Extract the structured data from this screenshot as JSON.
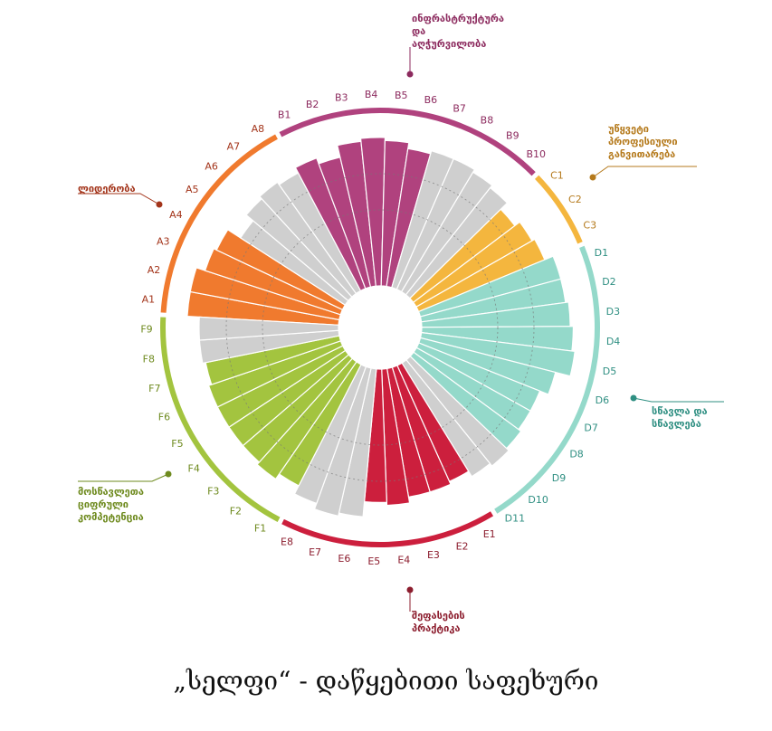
{
  "caption": "„სელფი“ - დაწყებითი საფეხური",
  "chart_data": {
    "type": "radial-bar",
    "ylim": [
      0,
      5
    ],
    "center_ratio": 0.2,
    "groups": [
      {
        "key": "A",
        "name": "ლიდერობა",
        "color": "#f07a2e",
        "items": [
          {
            "label": "A1",
            "value": 5.0,
            "filled": true
          },
          {
            "label": "A2",
            "value": 5.0,
            "filled": true
          },
          {
            "label": "A3",
            "value": 4.7,
            "filled": true
          },
          {
            "label": "A4",
            "value": 4.6,
            "filled": true
          },
          {
            "label": "A5",
            "value": 4.1,
            "filled": false
          },
          {
            "label": "A6",
            "value": 4.4,
            "filled": false
          },
          {
            "label": "A7",
            "value": 4.5,
            "filled": false
          },
          {
            "label": "A8",
            "value": 4.4,
            "filled": false
          }
        ]
      },
      {
        "key": "B",
        "name": "ინფრასტრუქტურა\nდა\nაღჭურვილობა",
        "color": "#b0427e",
        "items": [
          {
            "label": "B1",
            "value": 4.6,
            "filled": true
          },
          {
            "label": "B2",
            "value": 4.4,
            "filled": true
          },
          {
            "label": "B3",
            "value": 4.8,
            "filled": true
          },
          {
            "label": "B4",
            "value": 4.9,
            "filled": true
          },
          {
            "label": "B5",
            "value": 4.8,
            "filled": true
          },
          {
            "label": "B6",
            "value": 4.6,
            "filled": true
          },
          {
            "label": "B7",
            "value": 4.7,
            "filled": false
          },
          {
            "label": "B8",
            "value": 4.7,
            "filled": false
          },
          {
            "label": "B9",
            "value": 4.6,
            "filled": false
          },
          {
            "label": "B10",
            "value": 4.5,
            "filled": false
          }
        ]
      },
      {
        "key": "C",
        "name": "უწყვეტი\nპროფესიული\nგანვითარება",
        "color": "#f4b63e",
        "items": [
          {
            "label": "C1",
            "value": 4.2,
            "filled": true
          },
          {
            "label": "C2",
            "value": 4.4,
            "filled": true
          },
          {
            "label": "C3",
            "value": 4.5,
            "filled": true
          }
        ]
      },
      {
        "key": "D",
        "name": "სწავლა და\nსწავლება",
        "color": "#94d9ca",
        "items": [
          {
            "label": "D1",
            "value": 4.8,
            "filled": true
          },
          {
            "label": "D2",
            "value": 4.8,
            "filled": true
          },
          {
            "label": "D3",
            "value": 4.9,
            "filled": true
          },
          {
            "label": "D4",
            "value": 5.0,
            "filled": true
          },
          {
            "label": "D5",
            "value": 5.1,
            "filled": true
          },
          {
            "label": "D6",
            "value": 4.6,
            "filled": true
          },
          {
            "label": "D7",
            "value": 4.3,
            "filled": true
          },
          {
            "label": "D8",
            "value": 4.3,
            "filled": true
          },
          {
            "label": "D9",
            "value": 4.4,
            "filled": true
          },
          {
            "label": "D10",
            "value": 4.5,
            "filled": false
          },
          {
            "label": "D11",
            "value": 4.4,
            "filled": false
          }
        ]
      },
      {
        "key": "E",
        "name": "შეფასების\nპრაქტიკა",
        "color": "#cc1f3d",
        "items": [
          {
            "label": "E1",
            "value": 4.2,
            "filled": true
          },
          {
            "label": "E2",
            "value": 4.3,
            "filled": true
          },
          {
            "label": "E3",
            "value": 4.3,
            "filled": true
          },
          {
            "label": "E4",
            "value": 4.5,
            "filled": true
          },
          {
            "label": "E5",
            "value": 4.4,
            "filled": true
          },
          {
            "label": "E6",
            "value": 4.9,
            "filled": false
          },
          {
            "label": "E7",
            "value": 5.0,
            "filled": false
          },
          {
            "label": "E8",
            "value": 4.8,
            "filled": false
          }
        ]
      },
      {
        "key": "F",
        "name": "მოსწავლეთა\nციფრული\nკომპეტენცია",
        "color": "#a3c43f",
        "items": [
          {
            "label": "F1",
            "value": 4.5,
            "filled": true
          },
          {
            "label": "F2",
            "value": 4.7,
            "filled": true
          },
          {
            "label": "F3",
            "value": 4.6,
            "filled": true
          },
          {
            "label": "F4",
            "value": 4.6,
            "filled": true
          },
          {
            "label": "F5",
            "value": 4.6,
            "filled": true
          },
          {
            "label": "F6",
            "value": 4.6,
            "filled": true
          },
          {
            "label": "F7",
            "value": 4.5,
            "filled": true
          },
          {
            "label": "F8",
            "value": 4.6,
            "filled": false
          },
          {
            "label": "F9",
            "value": 4.6,
            "filled": false
          }
        ]
      }
    ],
    "unfilled_color": "#cfcfcf",
    "label_colors": {
      "A": "#a3341a",
      "B": "#8c2a5e",
      "C": "#b57a1c",
      "D": "#2f8f82",
      "E": "#8c1d2e",
      "F": "#6e8a1e"
    }
  }
}
